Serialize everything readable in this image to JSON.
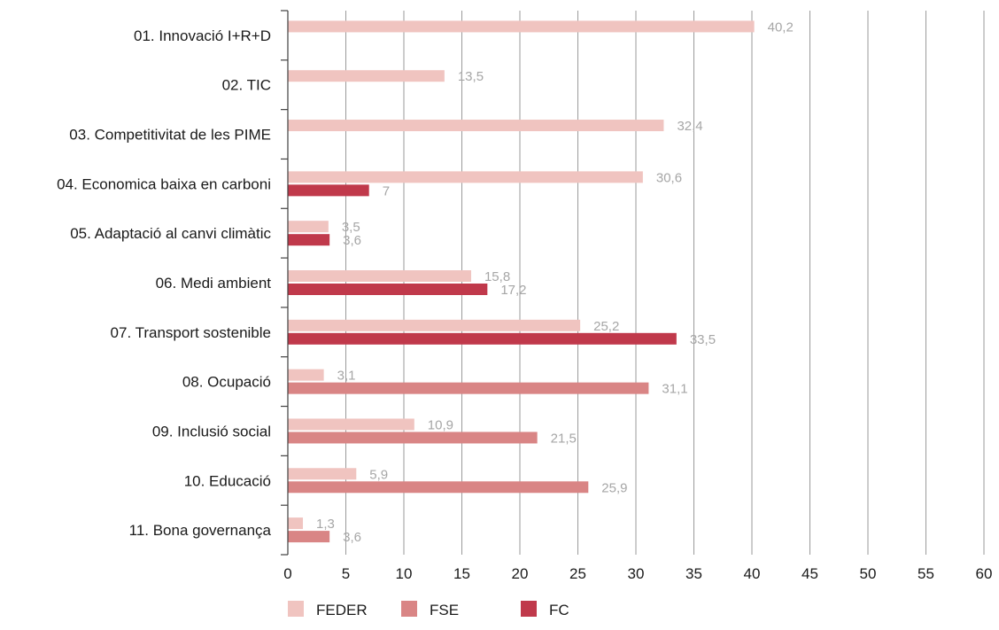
{
  "chart_data": {
    "type": "bar",
    "orientation": "horizontal",
    "categories": [
      "01. Innovació I+R+D",
      "02. TIC",
      "03. Competitivitat de les PIME",
      "04. Economica baixa en carboni",
      "05. Adaptació al canvi climàtic",
      "06. Medi ambient",
      "07. Transport sostenible",
      "08. Ocupació",
      "09. Inclusió social",
      "10. Educació",
      "11. Bona governança"
    ],
    "series": [
      {
        "name": "FEDER",
        "color": "#f0c4c0",
        "values": [
          40.2,
          13.5,
          32.4,
          30.6,
          3.5,
          15.8,
          25.2,
          3.1,
          10.9,
          5.9,
          1.3
        ],
        "labels": [
          "40,2",
          "13,5",
          "32,4",
          "30,6",
          "3,5",
          "15,8",
          "25,2",
          "3,1",
          "10,9",
          "5,9",
          "1,3"
        ]
      },
      {
        "name": "FSE",
        "color": "#d98585",
        "values": [
          null,
          null,
          null,
          null,
          null,
          null,
          null,
          31.1,
          21.5,
          25.9,
          3.6
        ],
        "labels": [
          "",
          "",
          "",
          "",
          "",
          "",
          "",
          "31,1",
          "21,5",
          "25,9",
          "3,6"
        ]
      },
      {
        "name": "FC",
        "color": "#c0394b",
        "values": [
          null,
          null,
          null,
          7,
          3.6,
          17.2,
          33.5,
          null,
          null,
          null,
          null
        ],
        "labels": [
          "",
          "",
          "",
          "7",
          "3,6",
          "17,2",
          "33,5",
          "",
          "",
          "",
          ""
        ]
      }
    ],
    "xlim": [
      0,
      60
    ],
    "xticks": [
      "0",
      "5",
      "10",
      "15",
      "20",
      "25",
      "30",
      "35",
      "40",
      "45",
      "50",
      "55",
      "60"
    ],
    "grid": true,
    "legend_position": "bottom",
    "title": "",
    "xlabel": "",
    "ylabel": ""
  }
}
